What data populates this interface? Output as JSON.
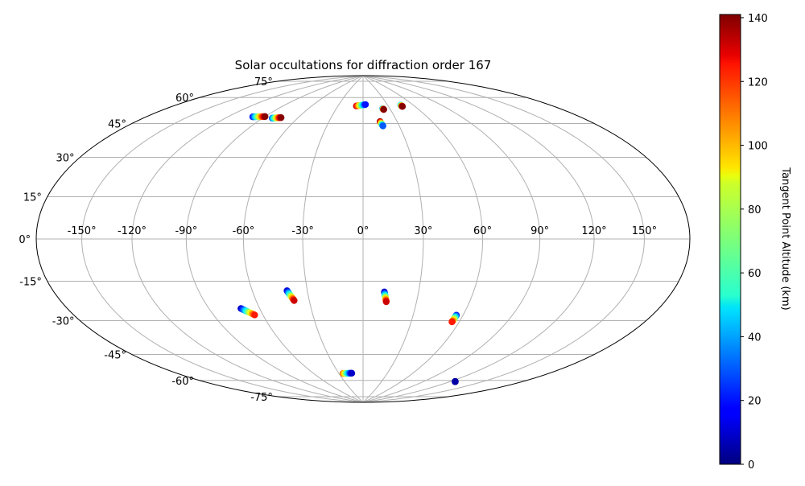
{
  "chart_data": {
    "type": "scatter",
    "projection": "hammer",
    "title": "Solar occultations for diffraction order 167",
    "xlabel": "",
    "ylabel": "",
    "grid": true,
    "lon_ticks": [
      -150,
      -120,
      -90,
      -60,
      -30,
      0,
      30,
      60,
      90,
      120,
      150
    ],
    "lon_tick_labels": [
      "-150°",
      "-120°",
      "-90°",
      "-60°",
      "-30°",
      "0°",
      "30°",
      "60°",
      "90°",
      "120°",
      "150°"
    ],
    "lat_ticks": [
      -75,
      -60,
      -45,
      -30,
      -15,
      0,
      15,
      30,
      45,
      60,
      75
    ],
    "lat_tick_labels": [
      "-75°",
      "-60°",
      "-45°",
      "-30°",
      "-15°",
      "0°",
      "15°",
      "30°",
      "45°",
      "60°",
      "75°"
    ],
    "colorbar": {
      "label": "Tangent Point Altitude (km)",
      "colormap": "jet",
      "range": [
        0,
        141
      ],
      "ticks": [
        0,
        20,
        40,
        60,
        80,
        100,
        120,
        140
      ],
      "tick_labels": [
        "0",
        "20",
        "40",
        "60",
        "80",
        "100",
        "120",
        "140"
      ]
    },
    "occultations": [
      {
        "start": [
          -100.0,
          59.5
        ],
        "end": [
          -90.0,
          60.5
        ],
        "alt_start": 20,
        "alt_end": 140
      },
      {
        "start": [
          -82.0,
          60.2
        ],
        "end": [
          -75.0,
          61.0
        ],
        "alt_start": 30,
        "alt_end": 140
      },
      {
        "start": [
          -8.0,
          70.3
        ],
        "end": [
          3.0,
          71.2
        ],
        "alt_start": 130,
        "alt_end": 20
      },
      {
        "start": [
          15.0,
          61.0
        ],
        "end": [
          16.5,
          58.5
        ],
        "alt_start": 140,
        "alt_end": 30
      },
      {
        "start": [
          22.0,
          68.5
        ],
        "end": [
          22.8,
          68.0
        ],
        "alt_start": 30,
        "alt_end": 140
      },
      {
        "start": [
          45.5,
          70.0
        ],
        "end": [
          46.0,
          69.2
        ],
        "alt_start": 40,
        "alt_end": 140
      },
      {
        "start": [
          -41.0,
          -25.5
        ],
        "end": [
          -38.5,
          -30.5
        ],
        "alt_start": 10,
        "alt_end": 130
      },
      {
        "start": [
          -71.0,
          -33.5
        ],
        "end": [
          -65.0,
          -37.0
        ],
        "alt_start": 10,
        "alt_end": 120
      },
      {
        "start": [
          11.5,
          -26.5
        ],
        "end": [
          13.0,
          -31.5
        ],
        "alt_start": 10,
        "alt_end": 130
      },
      {
        "start": [
          56.0,
          -37.5
        ],
        "end": [
          55.5,
          -41.0
        ],
        "alt_start": 20,
        "alt_end": 120
      },
      {
        "start": [
          -25.0,
          -71.0
        ],
        "end": [
          -14.0,
          -71.0
        ],
        "alt_start": 110,
        "alt_end": 10
      },
      {
        "start": [
          125.0,
          -70.0
        ],
        "end": [
          125.0,
          -70.0
        ],
        "alt_start": 5,
        "alt_end": 5
      }
    ]
  }
}
